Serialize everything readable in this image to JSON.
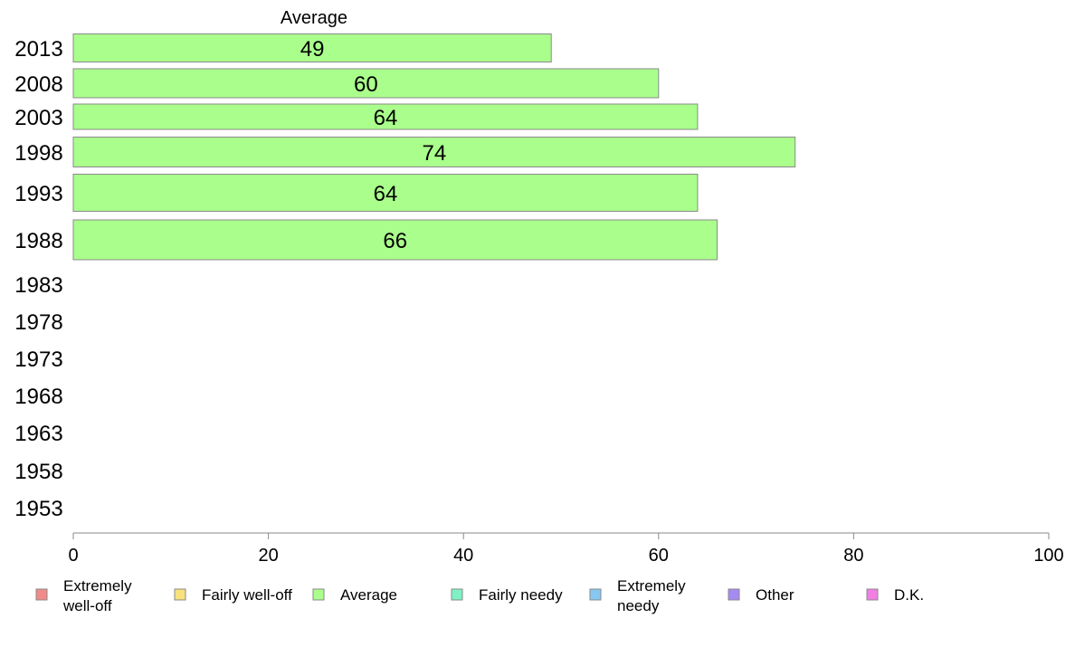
{
  "chart_data": {
    "type": "bar",
    "orientation": "horizontal",
    "stacked": true,
    "column_header": "Average",
    "categories": [
      "2013",
      "2008",
      "2003",
      "1998",
      "1993",
      "1988",
      "1983",
      "1978",
      "1973",
      "1968",
      "1963",
      "1958",
      "1953"
    ],
    "series": [
      {
        "name": "Extremely well-off",
        "color": "#f28a8a",
        "values": [
          null,
          null,
          null,
          null,
          null,
          null,
          null,
          null,
          null,
          null,
          null,
          null,
          null
        ]
      },
      {
        "name": "Fairly well-off",
        "color": "#f7e27e",
        "values": [
          null,
          null,
          null,
          null,
          null,
          null,
          null,
          null,
          null,
          null,
          null,
          null,
          null
        ]
      },
      {
        "name": "Average",
        "color": "#aaff8c",
        "values": [
          49,
          60,
          64,
          74,
          64,
          66,
          null,
          null,
          null,
          null,
          null,
          null,
          null
        ]
      },
      {
        "name": "Fairly needy",
        "color": "#7ff2c4",
        "values": [
          null,
          null,
          null,
          null,
          null,
          null,
          null,
          null,
          null,
          null,
          null,
          null,
          null
        ]
      },
      {
        "name": "Extremely needy",
        "color": "#86c8f2",
        "values": [
          null,
          null,
          null,
          null,
          null,
          null,
          null,
          null,
          null,
          null,
          null,
          null,
          null
        ]
      },
      {
        "name": "Other",
        "color": "#a58af2",
        "values": [
          null,
          null,
          null,
          null,
          null,
          null,
          null,
          null,
          null,
          null,
          null,
          null,
          null
        ]
      },
      {
        "name": "D.K.",
        "color": "#f27ee4",
        "values": [
          null,
          null,
          null,
          null,
          null,
          null,
          null,
          null,
          null,
          null,
          null,
          null,
          null
        ]
      }
    ],
    "legend": [
      {
        "lines": [
          "Extremely",
          "well-off"
        ],
        "color": "#f28a8a"
      },
      {
        "lines": [
          "Fairly well-off"
        ],
        "color": "#f7e27e"
      },
      {
        "lines": [
          "Average"
        ],
        "color": "#aaff8c"
      },
      {
        "lines": [
          "Fairly needy"
        ],
        "color": "#7ff2c4"
      },
      {
        "lines": [
          "Extremely",
          "needy"
        ],
        "color": "#86c8f2"
      },
      {
        "lines": [
          "Other"
        ],
        "color": "#a58af2"
      },
      {
        "lines": [
          "D.K."
        ],
        "color": "#f27ee4"
      }
    ],
    "xlim": [
      0,
      100
    ],
    "xticks": [
      0,
      20,
      40,
      60,
      80,
      100
    ],
    "legend_position": "bottom",
    "grid": false
  }
}
